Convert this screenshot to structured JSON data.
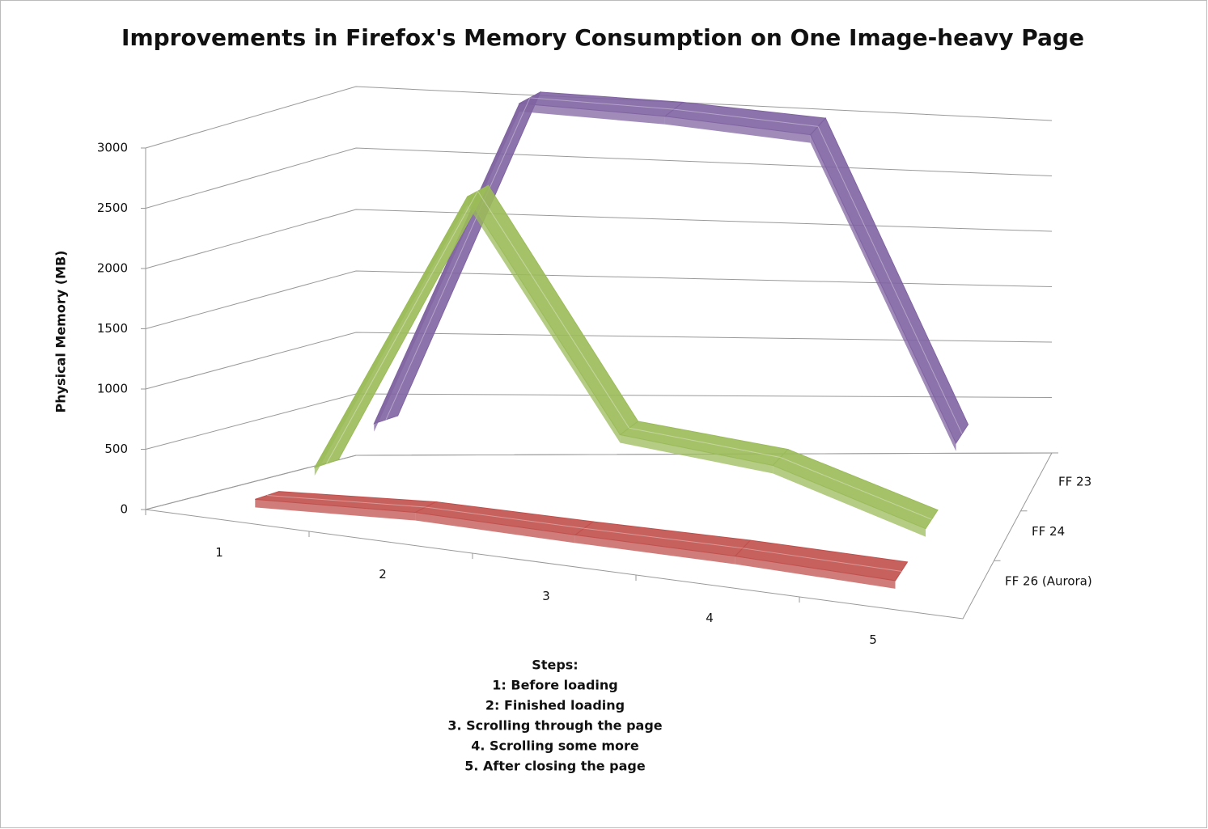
{
  "chart_data": {
    "type": "line3d",
    "title": "Improvements in Firefox's Memory Consumption on One Image-heavy Page",
    "y_label": "Physical Memory (MB)",
    "categories": [
      "1",
      "2",
      "3",
      "4",
      "5"
    ],
    "series": [
      {
        "name": "FF 23",
        "color": "#8064a2",
        "values": [
          400,
          3150,
          3150,
          3100,
          450
        ]
      },
      {
        "name": "FF 24",
        "color": "#9bbb59",
        "values": [
          200,
          2600,
          700,
          550,
          100
        ]
      },
      {
        "name": "FF 26 (Aurora)",
        "color": "#c0504d",
        "values": [
          100,
          150,
          120,
          100,
          50
        ]
      }
    ],
    "ylim": [
      0,
      3000
    ],
    "yticks": [
      0,
      500,
      1000,
      1500,
      2000,
      2500,
      3000
    ],
    "grid": true,
    "note": [
      "Steps:",
      "1: Before loading",
      "2: Finished loading",
      "3. Scrolling through the page",
      "4. Scrolling some more",
      "5. After closing the page"
    ]
  }
}
